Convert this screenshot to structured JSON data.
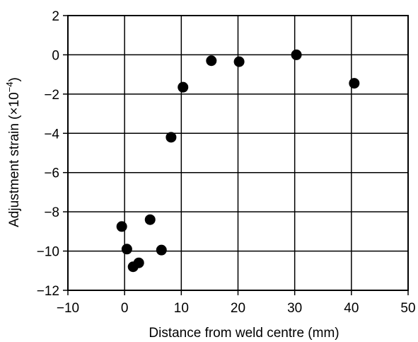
{
  "chart_data": {
    "type": "scatter",
    "title": "",
    "xlabel": "Distance from weld centre (mm)",
    "ylabel_text": "Adjustment strain (×10",
    "ylabel_exponent": "−4",
    "ylabel_close": ")",
    "xlim": [
      -10,
      50
    ],
    "ylim": [
      -12,
      2
    ],
    "x_ticks": [
      -10,
      0,
      10,
      20,
      30,
      40,
      50
    ],
    "y_ticks": [
      2,
      0,
      -2,
      -4,
      -6,
      -8,
      -10,
      -12
    ],
    "x_tick_labels": [
      "−10",
      "0",
      "10",
      "20",
      "30",
      "40",
      "50"
    ],
    "y_tick_labels": [
      "2",
      "0",
      "−2",
      "−4",
      "−6",
      "−8",
      "−10",
      "−12"
    ],
    "grid": true,
    "marker_color": "#000000",
    "points": [
      {
        "x": -0.5,
        "y": -8.75
      },
      {
        "x": 0.4,
        "y": -9.9
      },
      {
        "x": 1.5,
        "y": -10.8
      },
      {
        "x": 2.5,
        "y": -10.6
      },
      {
        "x": 4.5,
        "y": -8.4
      },
      {
        "x": 6.5,
        "y": -9.95
      },
      {
        "x": 8.2,
        "y": -4.2
      },
      {
        "x": 10.3,
        "y": -1.65
      },
      {
        "x": 15.3,
        "y": -0.3
      },
      {
        "x": 20.2,
        "y": -0.35
      },
      {
        "x": 30.3,
        "y": 0.0
      },
      {
        "x": 40.5,
        "y": -1.45
      }
    ]
  }
}
